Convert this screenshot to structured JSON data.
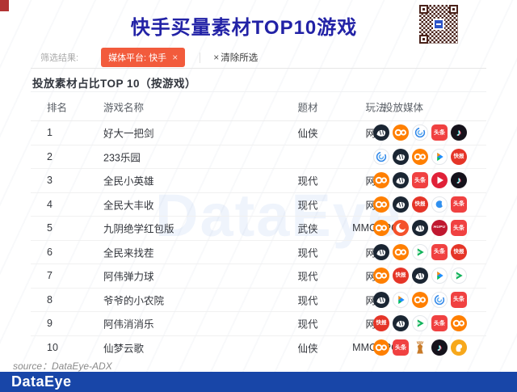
{
  "page": {
    "title": "快手买量素材TOP10游戏"
  },
  "filter_bar": {
    "label": "筛选结果:",
    "tag_text": "媒体平台: 快手",
    "tag_close": "×",
    "clear_icon": "×",
    "clear_label": "清除所选"
  },
  "section": {
    "title": "投放素材占比TOP 10（按游戏）"
  },
  "table": {
    "columns": [
      "排名",
      "游戏名称",
      "题材",
      "玩法",
      "投放媒体"
    ],
    "rows": [
      {
        "rank": "1",
        "name": "好大一把剑",
        "theme": "仙侠",
        "play": "网赚",
        "media": [
          "pangle",
          "kuaishou",
          "blue-vortex",
          "toutiao",
          "douyin"
        ]
      },
      {
        "rank": "2",
        "name": "233乐园",
        "theme": "",
        "play": "",
        "media": [
          "blue-vortex",
          "pangle",
          "kuaishou",
          "tencent-video",
          "kuaibao"
        ]
      },
      {
        "rank": "3",
        "name": "全民小英雄",
        "theme": "现代",
        "play": "网赚",
        "media": [
          "kuaishou",
          "pangle",
          "toutiao",
          "red-play",
          "douyin"
        ]
      },
      {
        "rank": "4",
        "name": "全民大丰收",
        "theme": "现代",
        "play": "网赚",
        "media": [
          "kuaishou",
          "pangle",
          "kuaibao",
          "blue-comma",
          "toutiao"
        ]
      },
      {
        "rank": "5",
        "name": "九阴绝学红包版",
        "theme": "武侠",
        "play": "MMORPG",
        "media": [
          "kuaishou",
          "red-swirl",
          "pangle",
          "hupu",
          "toutiao"
        ]
      },
      {
        "rank": "6",
        "name": "全民来找茬",
        "theme": "现代",
        "play": "网赚",
        "media": [
          "pangle",
          "kuaishou",
          "green-play",
          "toutiao",
          "kuaibao"
        ]
      },
      {
        "rank": "7",
        "name": "阿伟弹力球",
        "theme": "现代",
        "play": "网赚",
        "media": [
          "kuaishou",
          "kuaibao",
          "pangle",
          "tencent-video",
          "green-play"
        ]
      },
      {
        "rank": "8",
        "name": "爷爷的小农院",
        "theme": "现代",
        "play": "网赚",
        "media": [
          "pangle",
          "tencent-video",
          "kuaishou",
          "blue-vortex",
          "toutiao"
        ]
      },
      {
        "rank": "9",
        "name": "阿伟消消乐",
        "theme": "现代",
        "play": "网赚",
        "media": [
          "kuaibao",
          "pangle",
          "green-play",
          "toutiao",
          "kuaishou"
        ]
      },
      {
        "rank": "10",
        "name": "仙梦云歌",
        "theme": "仙侠",
        "play": "MMORPG",
        "media": [
          "kuaishou",
          "toutiao",
          "deer",
          "douyin",
          "yellow-seal"
        ]
      }
    ]
  },
  "icon_glyphs": {
    "toutiao": "头条",
    "kuaibao": "快报",
    "hupu": "HUPU",
    "douyin": "♪"
  },
  "watermark": "DataEye",
  "footer": {
    "source": "source：DataEye-ADX",
    "brand": "DataEye"
  },
  "colors": {
    "title_blue": "#2222A6",
    "tag_red": "#F25B3C",
    "footer_bar_blue": "#1846A8",
    "kuaishou_orange": "#FF7F00",
    "toutiao_red": "#F04141",
    "watermark_blue": "#2E6EDC"
  }
}
